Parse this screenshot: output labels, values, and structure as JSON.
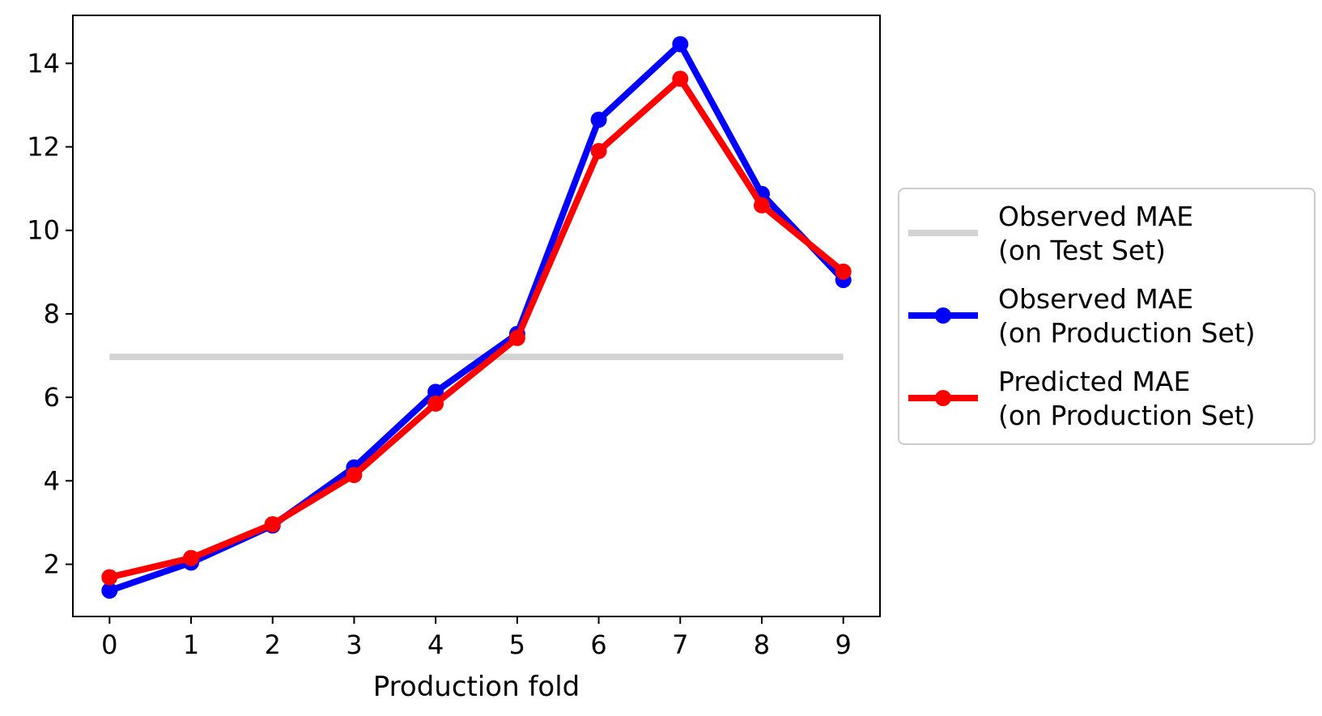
{
  "chart_data": {
    "type": "line",
    "title": "",
    "xlabel": "Production fold",
    "ylabel": "",
    "x": [
      0,
      1,
      2,
      3,
      4,
      5,
      6,
      7,
      8,
      9
    ],
    "xlim": [
      -0.45,
      9.45
    ],
    "ylim": [
      0.75,
      15.15
    ],
    "yticks": [
      2,
      4,
      6,
      8,
      10,
      12,
      14
    ],
    "grid": false,
    "legend_position": "outside-right",
    "series": [
      {
        "name": "Observed MAE\n(on Test Set)",
        "color": "#d3d3d3",
        "markers": false,
        "values": [
          6.97,
          6.97,
          6.97,
          6.97,
          6.97,
          6.97,
          6.97,
          6.97,
          6.97,
          6.97
        ]
      },
      {
        "name": "Observed MAE\n(on Production Set)",
        "color": "#0000ff",
        "markers": true,
        "values": [
          1.37,
          2.04,
          2.93,
          4.32,
          6.13,
          7.52,
          12.65,
          14.46,
          10.87,
          8.81
        ]
      },
      {
        "name": "Predicted MAE\n(on Production Set)",
        "color": "#ff0000",
        "markers": true,
        "values": [
          1.69,
          2.15,
          2.96,
          4.14,
          5.85,
          7.42,
          11.9,
          13.63,
          10.6,
          9.01
        ]
      }
    ]
  }
}
